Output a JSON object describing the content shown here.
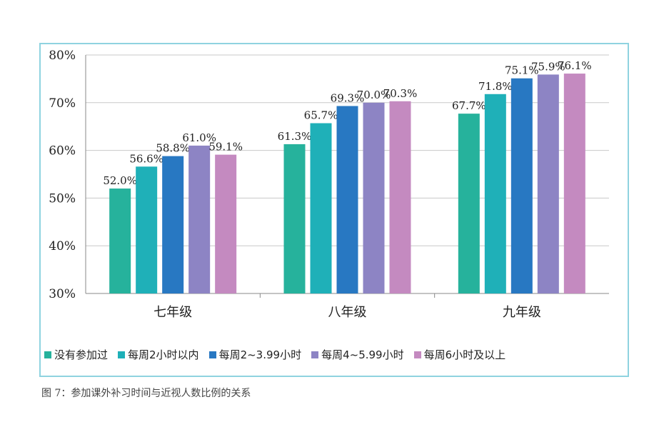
{
  "chart_data": {
    "type": "bar",
    "categories": [
      "七年级",
      "八年级",
      "九年级"
    ],
    "series": [
      {
        "name": "没有参加过",
        "color": "#26b29c",
        "values": [
          52.0,
          61.3,
          67.7
        ]
      },
      {
        "name": "每周2小时以内",
        "color": "#1fb0b8",
        "values": [
          56.6,
          65.7,
          71.8
        ]
      },
      {
        "name": "每周2~3.99小时",
        "color": "#2878c2",
        "values": [
          58.8,
          69.3,
          75.1
        ]
      },
      {
        "name": "每周4~5.99小时",
        "color": "#8d84c4",
        "values": [
          61.0,
          70.0,
          75.9
        ]
      },
      {
        "name": "每周6小时及以上",
        "color": "#c48ac0",
        "values": [
          59.1,
          70.3,
          76.1
        ]
      }
    ],
    "data_labels": [
      [
        "52.0%",
        "61.3%",
        "67.7%"
      ],
      [
        "56.6%",
        "65.7%",
        "71.8%"
      ],
      [
        "58.8%",
        "69.3%",
        "75.1%"
      ],
      [
        "61.0%",
        "70.0%",
        "75.9%"
      ],
      [
        "59.1%",
        "70.3%",
        "76.1%"
      ]
    ],
    "y_ticks": [
      "30%",
      "40%",
      "50%",
      "60%",
      "70%",
      "80%"
    ],
    "ylim": [
      30,
      80
    ],
    "grid": true,
    "legend_position": "bottom"
  },
  "caption": "图 7：参加课外补习时间与近视人数比例的关系"
}
